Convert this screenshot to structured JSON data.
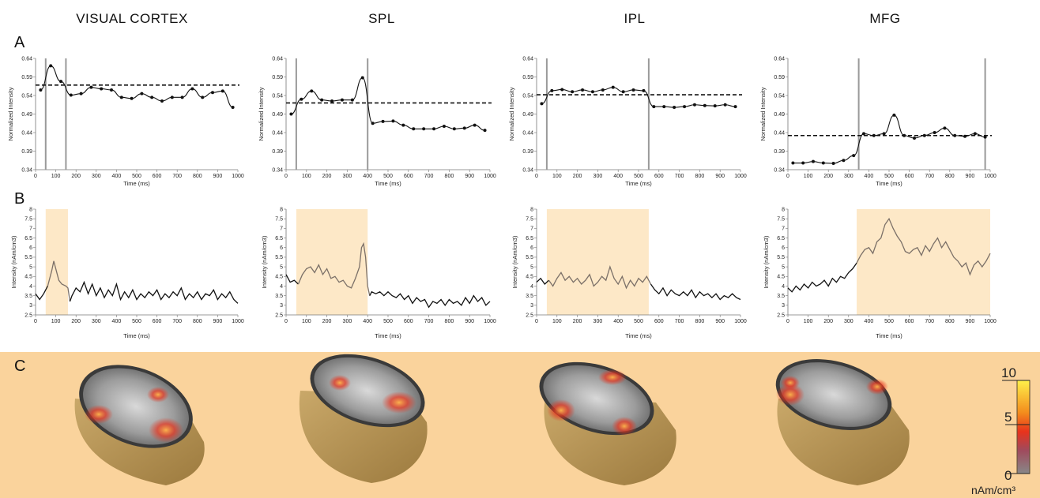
{
  "panel_labels": {
    "a": "A",
    "b": "B",
    "c": "C"
  },
  "regions": [
    "VISUAL CORTEX",
    "SPL",
    "IPL",
    "MFG"
  ],
  "colors": {
    "highlight": "#fde8c7",
    "panel_c_background": "#fad39c",
    "line_black": "#111111",
    "line_gray": "#7b7068",
    "marker_line": "#9a9a9a",
    "colorbar_top": "#fff04a",
    "colorbar_mid": "#e8321c",
    "colorbar_bottom": "#888888"
  },
  "chart_data": [
    {
      "type": "line",
      "panel": "A",
      "region": "VISUAL CORTEX",
      "xlabel": "Time (ms)",
      "ylabel": "Normalized Intensity",
      "xlim": [
        0,
        1000
      ],
      "ylim": [
        0.34,
        0.64
      ],
      "xticks": [
        0,
        100,
        200,
        300,
        400,
        500,
        600,
        700,
        800,
        900,
        1000
      ],
      "yticks": [
        "0.34",
        "0.39",
        "0.44",
        "0.49",
        "0.54",
        "0.59",
        "0.64"
      ],
      "x": [
        25,
        75,
        125,
        175,
        225,
        275,
        325,
        375,
        425,
        475,
        525,
        575,
        625,
        675,
        725,
        775,
        825,
        875,
        925,
        975
      ],
      "y": [
        0.555,
        0.62,
        0.578,
        0.541,
        0.545,
        0.562,
        0.558,
        0.555,
        0.535,
        0.532,
        0.545,
        0.535,
        0.525,
        0.535,
        0.535,
        0.558,
        0.535,
        0.548,
        0.552,
        0.508
      ],
      "threshold": 0.568,
      "markers": [
        50,
        150
      ]
    },
    {
      "type": "line",
      "panel": "A",
      "region": "SPL",
      "xlabel": "Time (ms)",
      "ylabel": "Normalized Intensity",
      "xlim": [
        0,
        1000
      ],
      "ylim": [
        0.34,
        0.64
      ],
      "xticks": [
        0,
        100,
        200,
        300,
        400,
        500,
        600,
        700,
        800,
        900,
        1000
      ],
      "yticks": [
        "0.34",
        "0.39",
        "0.44",
        "0.49",
        "0.54",
        "0.59",
        "0.64"
      ],
      "x": [
        25,
        75,
        125,
        175,
        225,
        275,
        325,
        375,
        425,
        475,
        525,
        575,
        625,
        675,
        725,
        775,
        825,
        875,
        925,
        975
      ],
      "y": [
        0.49,
        0.53,
        0.552,
        0.528,
        0.525,
        0.528,
        0.528,
        0.588,
        0.465,
        0.47,
        0.471,
        0.46,
        0.45,
        0.45,
        0.45,
        0.457,
        0.45,
        0.452,
        0.46,
        0.446
      ],
      "threshold": 0.52,
      "markers": [
        50,
        400
      ]
    },
    {
      "type": "line",
      "panel": "A",
      "region": "IPL",
      "xlabel": "Time (ms)",
      "ylabel": "Normalized Intensity",
      "xlim": [
        0,
        1000
      ],
      "ylim": [
        0.34,
        0.64
      ],
      "xticks": [
        0,
        100,
        200,
        300,
        400,
        500,
        600,
        700,
        800,
        900,
        1000
      ],
      "yticks": [
        "0.34",
        "0.39",
        "0.44",
        "0.49",
        "0.54",
        "0.59",
        "0.64"
      ],
      "x": [
        25,
        75,
        125,
        175,
        225,
        275,
        325,
        375,
        425,
        475,
        525,
        575,
        625,
        675,
        725,
        775,
        825,
        875,
        925,
        975
      ],
      "y": [
        0.518,
        0.553,
        0.556,
        0.55,
        0.555,
        0.55,
        0.555,
        0.562,
        0.55,
        0.555,
        0.553,
        0.51,
        0.51,
        0.508,
        0.51,
        0.515,
        0.513,
        0.512,
        0.515,
        0.51
      ],
      "threshold": 0.542,
      "markers": [
        50,
        550
      ]
    },
    {
      "type": "line",
      "panel": "A",
      "region": "MFG",
      "xlabel": "Time (ms)",
      "ylabel": "Normalized Intensity",
      "xlim": [
        0,
        1000
      ],
      "ylim": [
        0.34,
        0.64
      ],
      "xticks": [
        0,
        100,
        200,
        300,
        400,
        500,
        600,
        700,
        800,
        900,
        1000
      ],
      "yticks": [
        "0.34",
        "0.39",
        "0.44",
        "0.49",
        "0.54",
        "0.59",
        "0.64"
      ],
      "x": [
        25,
        75,
        125,
        175,
        225,
        275,
        325,
        375,
        425,
        475,
        525,
        575,
        625,
        675,
        725,
        775,
        825,
        875,
        925,
        975
      ],
      "y": [
        0.358,
        0.358,
        0.362,
        0.358,
        0.357,
        0.365,
        0.378,
        0.437,
        0.432,
        0.437,
        0.487,
        0.432,
        0.425,
        0.432,
        0.44,
        0.452,
        0.432,
        0.43,
        0.437,
        0.428
      ],
      "threshold": 0.432,
      "markers": [
        350,
        975
      ]
    },
    {
      "type": "line",
      "panel": "B",
      "region": "VISUAL CORTEX",
      "xlabel": "Time (ms)",
      "ylabel": "Intensity (nAm/cm3)",
      "xlim": [
        0,
        1000
      ],
      "ylim": [
        2.5,
        8
      ],
      "xticks": [
        0,
        100,
        200,
        300,
        400,
        500,
        600,
        700,
        800,
        900,
        1000
      ],
      "yticks": [
        "2.5",
        "3",
        "3.5",
        "4",
        "4.5",
        "5",
        "5.5",
        "6",
        "6.5",
        "7",
        "7.5",
        "8"
      ],
      "highlight": [
        50,
        160
      ],
      "x": [
        0,
        20,
        40,
        60,
        80,
        90,
        100,
        115,
        130,
        150,
        160,
        170,
        180,
        200,
        220,
        240,
        260,
        280,
        300,
        320,
        340,
        360,
        380,
        400,
        420,
        440,
        460,
        480,
        500,
        520,
        540,
        560,
        580,
        600,
        620,
        640,
        660,
        680,
        700,
        720,
        740,
        760,
        780,
        800,
        820,
        840,
        860,
        880,
        900,
        920,
        940,
        960,
        980,
        1000
      ],
      "y": [
        3.6,
        3.3,
        3.6,
        4.0,
        4.8,
        5.3,
        4.9,
        4.3,
        4.1,
        4.0,
        3.9,
        3.2,
        3.5,
        3.9,
        3.7,
        4.2,
        3.6,
        4.1,
        3.5,
        3.9,
        3.4,
        3.8,
        3.5,
        4.1,
        3.3,
        3.7,
        3.4,
        3.8,
        3.3,
        3.6,
        3.4,
        3.7,
        3.5,
        3.8,
        3.3,
        3.6,
        3.4,
        3.7,
        3.5,
        3.9,
        3.3,
        3.6,
        3.4,
        3.7,
        3.3,
        3.6,
        3.5,
        3.8,
        3.3,
        3.6,
        3.4,
        3.7,
        3.3,
        3.1
      ]
    },
    {
      "type": "line",
      "panel": "B",
      "region": "SPL",
      "xlabel": "Time (ms)",
      "ylabel": "Intensity (nAm/cm3)",
      "xlim": [
        0,
        1000
      ],
      "ylim": [
        2.5,
        8
      ],
      "xticks": [
        0,
        100,
        200,
        300,
        400,
        500,
        600,
        700,
        800,
        900,
        1000
      ],
      "yticks": [
        "2.5",
        "3",
        "3.5",
        "4",
        "4.5",
        "5",
        "5.5",
        "6",
        "6.5",
        "7",
        "7.5",
        "8"
      ],
      "highlight": [
        50,
        400
      ],
      "x": [
        0,
        20,
        40,
        60,
        80,
        100,
        120,
        140,
        160,
        180,
        200,
        220,
        240,
        260,
        280,
        300,
        320,
        340,
        360,
        370,
        380,
        390,
        400,
        410,
        420,
        440,
        460,
        480,
        500,
        520,
        540,
        560,
        580,
        600,
        620,
        640,
        660,
        680,
        700,
        720,
        740,
        760,
        780,
        800,
        820,
        840,
        860,
        880,
        900,
        920,
        940,
        960,
        980,
        1000
      ],
      "y": [
        4.6,
        4.2,
        4.3,
        4.1,
        4.6,
        4.9,
        5.0,
        4.7,
        5.1,
        4.6,
        4.9,
        4.4,
        4.5,
        4.2,
        4.3,
        4.0,
        3.9,
        4.4,
        5.0,
        6.0,
        6.2,
        5.5,
        4.0,
        3.5,
        3.7,
        3.6,
        3.7,
        3.5,
        3.7,
        3.5,
        3.4,
        3.6,
        3.3,
        3.5,
        3.1,
        3.4,
        3.2,
        3.3,
        2.9,
        3.2,
        3.1,
        3.3,
        3.0,
        3.3,
        3.1,
        3.2,
        3.0,
        3.4,
        3.1,
        3.5,
        3.2,
        3.4,
        3.0,
        3.2
      ]
    },
    {
      "type": "line",
      "panel": "B",
      "region": "IPL",
      "xlabel": "Time (ms)",
      "ylabel": "Intensity (nAm/cm3)",
      "xlim": [
        0,
        1000
      ],
      "ylim": [
        2.5,
        8
      ],
      "xticks": [
        0,
        100,
        200,
        300,
        400,
        500,
        600,
        700,
        800,
        900,
        1000
      ],
      "yticks": [
        "2.5",
        "3",
        "3.5",
        "4",
        "4.5",
        "5",
        "5.5",
        "6",
        "6.5",
        "7",
        "7.5",
        "8"
      ],
      "highlight": [
        50,
        550
      ],
      "x": [
        0,
        20,
        40,
        60,
        80,
        100,
        120,
        140,
        160,
        180,
        200,
        220,
        240,
        260,
        280,
        300,
        320,
        340,
        360,
        380,
        400,
        420,
        440,
        460,
        480,
        500,
        520,
        540,
        560,
        580,
        600,
        620,
        640,
        660,
        680,
        700,
        720,
        740,
        760,
        780,
        800,
        820,
        840,
        860,
        880,
        900,
        920,
        940,
        960,
        980,
        1000
      ],
      "y": [
        4.2,
        4.4,
        4.1,
        4.3,
        4.0,
        4.4,
        4.7,
        4.3,
        4.5,
        4.2,
        4.4,
        4.1,
        4.3,
        4.6,
        4.0,
        4.2,
        4.5,
        4.3,
        5.0,
        4.4,
        4.1,
        4.5,
        3.9,
        4.3,
        4.0,
        4.4,
        4.2,
        4.5,
        4.1,
        3.8,
        3.6,
        3.9,
        3.5,
        3.8,
        3.6,
        3.5,
        3.7,
        3.5,
        3.8,
        3.4,
        3.7,
        3.5,
        3.6,
        3.4,
        3.6,
        3.3,
        3.5,
        3.4,
        3.6,
        3.4,
        3.3
      ]
    },
    {
      "type": "line",
      "panel": "B",
      "region": "MFG",
      "xlabel": "Time (ms)",
      "ylabel": "Intensity (nAm/cm3)",
      "xlim": [
        0,
        1000
      ],
      "ylim": [
        2.5,
        8
      ],
      "xticks": [
        0,
        100,
        200,
        300,
        400,
        500,
        600,
        700,
        800,
        900,
        1000
      ],
      "yticks": [
        "2.5",
        "3",
        "3.5",
        "4",
        "4.5",
        "5",
        "5.5",
        "6",
        "6.5",
        "7",
        "7.5",
        "8"
      ],
      "highlight": [
        340,
        1000
      ],
      "x": [
        0,
        20,
        40,
        60,
        80,
        100,
        120,
        140,
        160,
        180,
        200,
        220,
        240,
        260,
        280,
        300,
        320,
        340,
        360,
        380,
        400,
        420,
        440,
        460,
        480,
        500,
        520,
        540,
        560,
        580,
        600,
        620,
        640,
        660,
        680,
        700,
        720,
        740,
        760,
        780,
        800,
        820,
        840,
        860,
        880,
        900,
        920,
        940,
        960,
        980,
        1000
      ],
      "y": [
        3.9,
        3.7,
        4.0,
        3.8,
        4.1,
        3.9,
        4.2,
        4.0,
        4.1,
        4.3,
        4.0,
        4.4,
        4.2,
        4.5,
        4.4,
        4.7,
        4.9,
        5.2,
        5.6,
        5.9,
        6.0,
        5.7,
        6.3,
        6.5,
        7.2,
        7.5,
        7.0,
        6.6,
        6.3,
        5.8,
        5.7,
        5.9,
        6.0,
        5.6,
        6.1,
        5.8,
        6.2,
        6.5,
        6.0,
        6.3,
        5.9,
        5.5,
        5.3,
        5.0,
        5.2,
        4.6,
        5.1,
        5.3,
        5.0,
        5.3,
        5.7
      ]
    }
  ],
  "colorbar": {
    "max": "10",
    "mid": "5",
    "min": "0",
    "unit": "nAm/cm³"
  }
}
